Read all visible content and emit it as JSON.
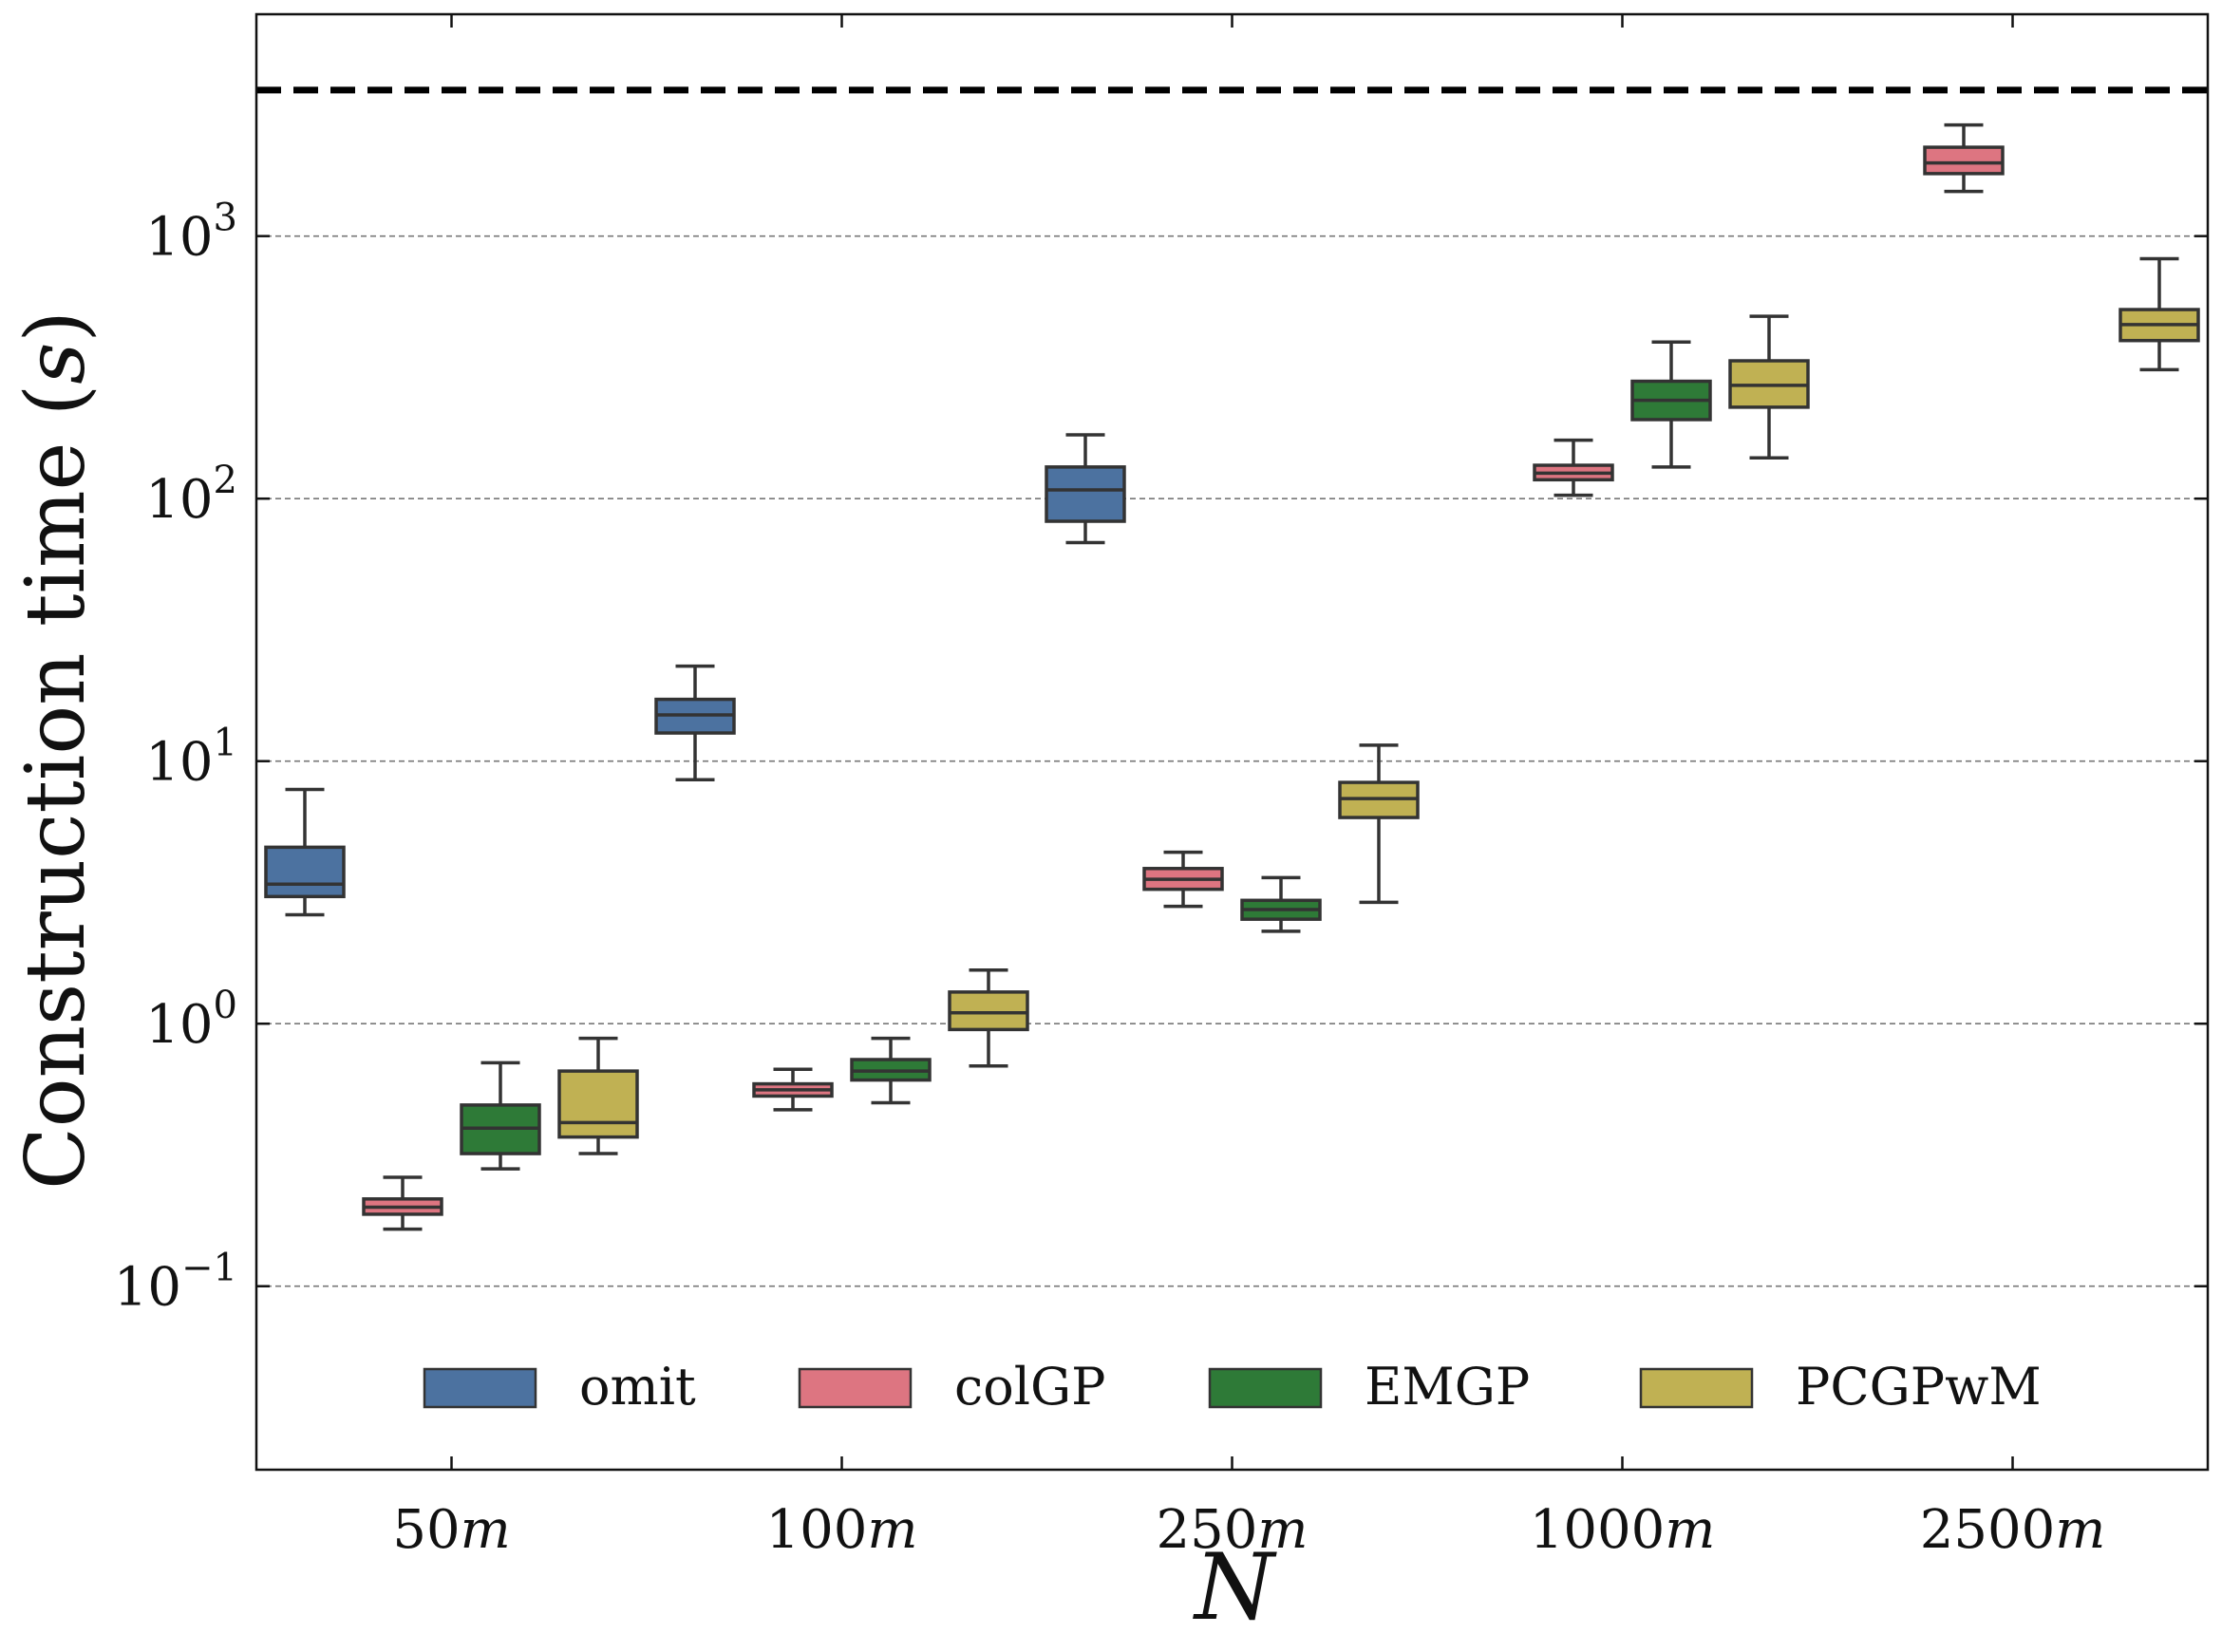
{
  "chart_data": {
    "type": "box",
    "xlabel": "N",
    "ylabel_main": "Construction time (",
    "ylabel_unit": "s",
    "ylabel_close": ")",
    "yscale": "log",
    "ylim": [
      0.02,
      7000
    ],
    "grid": "y-major-dashed",
    "legend_placement": "bottom-center",
    "categories": [
      {
        "num": "50",
        "suffix": "m"
      },
      {
        "num": "100",
        "suffix": "m"
      },
      {
        "num": "250",
        "suffix": "m"
      },
      {
        "num": "1000",
        "suffix": "m"
      },
      {
        "num": "2500",
        "suffix": "m"
      }
    ],
    "yticks": [
      {
        "value": 0.1,
        "base": "10",
        "exp": "−1"
      },
      {
        "value": 1,
        "base": "10",
        "exp": "0"
      },
      {
        "value": 10,
        "base": "10",
        "exp": "1"
      },
      {
        "value": 100,
        "base": "10",
        "exp": "2"
      },
      {
        "value": 1000,
        "base": "10",
        "exp": "3"
      }
    ],
    "reference_line": {
      "value": 3600,
      "style": "dashed",
      "color": "#000000"
    },
    "series": [
      {
        "name": "omit",
        "color": "#4c72a0",
        "boxes": [
          {
            "min": 2.6,
            "q1": 3.05,
            "median": 3.4,
            "q3": 4.7,
            "max": 7.8
          },
          {
            "min": 8.5,
            "q1": 12.8,
            "median": 15.0,
            "q3": 17.2,
            "max": 23.0
          },
          {
            "min": 68,
            "q1": 82,
            "median": 108,
            "q3": 132,
            "max": 175
          },
          null,
          null
        ]
      },
      {
        "name": "colGP",
        "color": "#dd7581",
        "boxes": [
          {
            "min": 0.165,
            "q1": 0.188,
            "median": 0.2,
            "q3": 0.215,
            "max": 0.26
          },
          {
            "min": 0.47,
            "q1": 0.53,
            "median": 0.56,
            "q3": 0.59,
            "max": 0.67
          },
          {
            "min": 2.8,
            "q1": 3.25,
            "median": 3.55,
            "q3": 3.9,
            "max": 4.5
          },
          {
            "min": 103,
            "q1": 118,
            "median": 125,
            "q3": 134,
            "max": 167
          },
          {
            "min": 1480,
            "q1": 1730,
            "median": 1900,
            "q3": 2180,
            "max": 2650
          }
        ]
      },
      {
        "name": "EMGP",
        "color": "#2e7a37",
        "boxes": [
          {
            "min": 0.28,
            "q1": 0.32,
            "median": 0.4,
            "q3": 0.49,
            "max": 0.71
          },
          {
            "min": 0.5,
            "q1": 0.61,
            "median": 0.66,
            "q3": 0.73,
            "max": 0.88
          },
          {
            "min": 2.25,
            "q1": 2.5,
            "median": 2.72,
            "q3": 2.95,
            "max": 3.6
          },
          {
            "min": 132,
            "q1": 200,
            "median": 237,
            "q3": 280,
            "max": 395
          },
          null
        ]
      },
      {
        "name": "PCGPwM",
        "color": "#c0b153",
        "boxes": [
          {
            "min": 0.32,
            "q1": 0.37,
            "median": 0.42,
            "q3": 0.66,
            "max": 0.88
          },
          {
            "min": 0.69,
            "q1": 0.95,
            "median": 1.1,
            "q3": 1.32,
            "max": 1.6
          },
          {
            "min": 2.9,
            "q1": 6.1,
            "median": 7.2,
            "q3": 8.3,
            "max": 11.5
          },
          {
            "min": 143,
            "q1": 223,
            "median": 270,
            "q3": 335,
            "max": 495
          },
          {
            "min": 310,
            "q1": 400,
            "median": 460,
            "q3": 525,
            "max": 820
          }
        ]
      }
    ]
  }
}
